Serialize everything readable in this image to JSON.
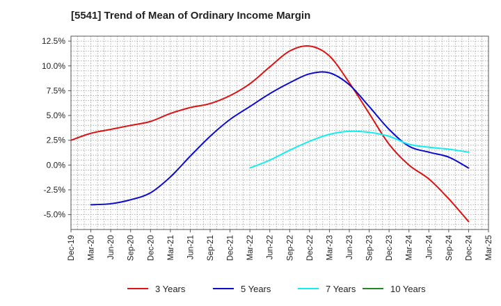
{
  "chart_data": {
    "type": "line",
    "title": "[5541]  Trend of Mean of Ordinary Income Margin",
    "xlabel": "",
    "ylabel": "",
    "x_ticks": [
      "Dec-19",
      "Mar-20",
      "Jun-20",
      "Sep-20",
      "Dec-20",
      "Mar-21",
      "Jun-21",
      "Sep-21",
      "Dec-21",
      "Mar-22",
      "Jun-22",
      "Sep-22",
      "Dec-22",
      "Mar-23",
      "Jun-23",
      "Sep-23",
      "Dec-23",
      "Mar-24",
      "Jun-24",
      "Sep-24",
      "Dec-24",
      "Mar-25"
    ],
    "y_ticks": [
      "12.5%",
      "10.0%",
      "7.5%",
      "5.0%",
      "2.5%",
      "0.0%",
      "-2.5%",
      "-5.0%"
    ],
    "y_tick_values": [
      12.5,
      10.0,
      7.5,
      5.0,
      2.5,
      0.0,
      -2.5,
      -5.0
    ],
    "ylim": [
      -6.5,
      13.0
    ],
    "grid": true,
    "legend_position": "bottom",
    "series": [
      {
        "name": "3 Years",
        "color": "#dd1111",
        "x": [
          "Dec-19",
          "Mar-20",
          "Jun-20",
          "Sep-20",
          "Dec-20",
          "Mar-21",
          "Jun-21",
          "Sep-21",
          "Dec-21",
          "Mar-22",
          "Jun-22",
          "Sep-22",
          "Dec-22",
          "Mar-23",
          "Jun-23",
          "Sep-23",
          "Dec-23",
          "Mar-24",
          "Jun-24",
          "Sep-24",
          "Dec-24"
        ],
        "values": [
          2.5,
          3.2,
          3.6,
          4.0,
          4.4,
          5.2,
          5.8,
          6.2,
          7.0,
          8.2,
          9.9,
          11.5,
          12.0,
          11.0,
          8.3,
          5.2,
          2.1,
          0.0,
          -1.4,
          -3.4,
          -5.7
        ]
      },
      {
        "name": "5 Years",
        "color": "#0a0acc",
        "x": [
          "Mar-20",
          "Jun-20",
          "Sep-20",
          "Dec-20",
          "Mar-21",
          "Jun-21",
          "Sep-21",
          "Dec-21",
          "Mar-22",
          "Jun-22",
          "Sep-22",
          "Dec-22",
          "Mar-23",
          "Jun-23",
          "Sep-23",
          "Dec-23",
          "Mar-24",
          "Jun-24",
          "Sep-24",
          "Dec-24"
        ],
        "values": [
          -4.0,
          -3.9,
          -3.5,
          -2.8,
          -1.2,
          0.9,
          2.9,
          4.6,
          5.9,
          7.2,
          8.3,
          9.2,
          9.3,
          8.1,
          5.9,
          3.6,
          1.9,
          1.3,
          0.8,
          -0.3
        ]
      },
      {
        "name": "7 Years",
        "color": "#11eeee",
        "x": [
          "Mar-22",
          "Jun-22",
          "Sep-22",
          "Dec-22",
          "Mar-23",
          "Jun-23",
          "Sep-23",
          "Dec-23",
          "Mar-24",
          "Jun-24",
          "Sep-24",
          "Dec-24"
        ],
        "values": [
          -0.3,
          0.5,
          1.5,
          2.4,
          3.1,
          3.4,
          3.3,
          2.9,
          2.1,
          1.8,
          1.6,
          1.3
        ]
      },
      {
        "name": "10 Years",
        "color": "#228822",
        "x": [],
        "values": []
      }
    ]
  }
}
